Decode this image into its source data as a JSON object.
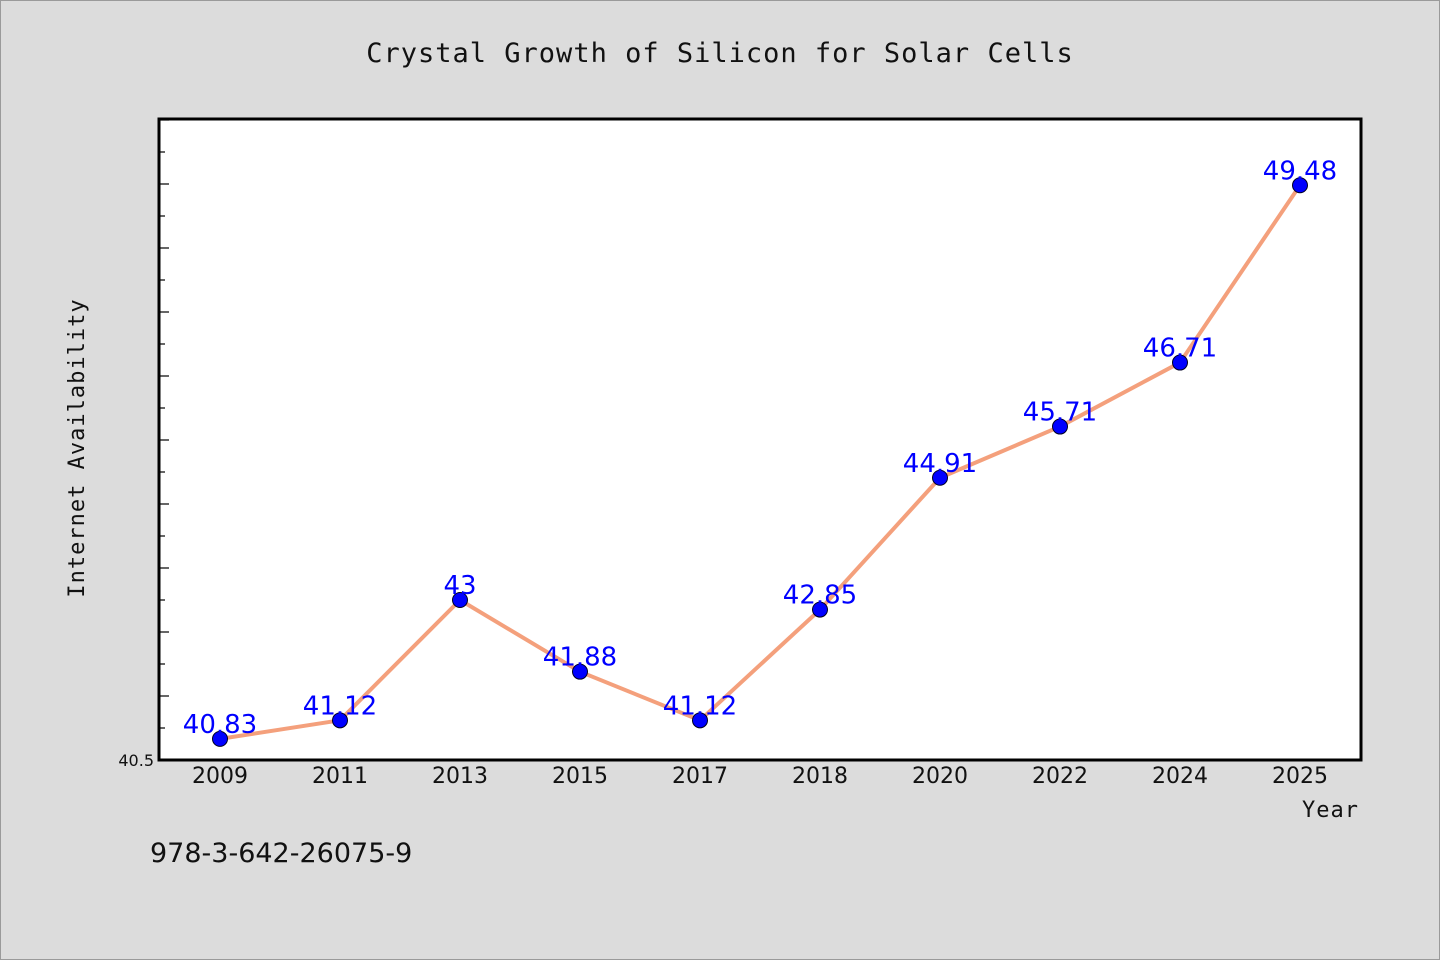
{
  "chart_data": {
    "type": "line",
    "title": "Crystal Growth of Silicon for Solar Cells",
    "xlabel": "Year",
    "ylabel": "Internet Availability",
    "categories": [
      "2009",
      "2011",
      "2013",
      "2015",
      "2017",
      "2018",
      "2020",
      "2022",
      "2024",
      "2025"
    ],
    "values": [
      40.83,
      41.12,
      43,
      41.88,
      41.12,
      42.85,
      44.91,
      45.71,
      46.71,
      49.48
    ],
    "data_labels": [
      "40.83",
      "41.12",
      "43",
      "41.88",
      "41.12",
      "42.85",
      "44.91",
      "45.71",
      "46.71",
      "49.48"
    ],
    "y_tick_labels": [
      "40.5"
    ],
    "ylim": [
      40.5,
      50.5
    ],
    "grid": false,
    "legend": "none",
    "line_color": "#f4a07c",
    "marker_color": "#0000ff",
    "label_color": "#0000ff"
  },
  "annotation": {
    "isbn": "978-3-642-26075-9"
  }
}
